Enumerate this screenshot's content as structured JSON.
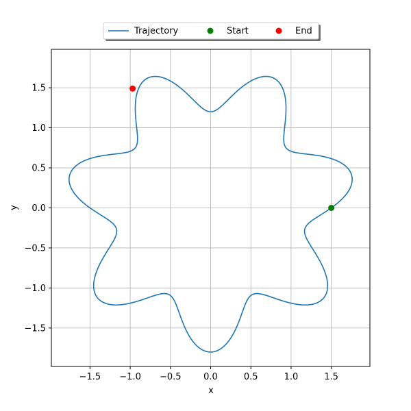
{
  "chart_data": {
    "type": "line",
    "xlabel": "x",
    "ylabel": "y",
    "xlim": [
      -1.98,
      1.98
    ],
    "ylim": [
      -1.98,
      1.98
    ],
    "xticks": [
      -1.5,
      -1.0,
      -0.5,
      0.0,
      0.5,
      1.0,
      1.5
    ],
    "yticks": [
      -1.5,
      -1.0,
      -0.5,
      0.0,
      0.5,
      1.0,
      1.5
    ],
    "xtick_labels": [
      "−1.5",
      "−1.0",
      "−0.5",
      "0.0",
      "0.5",
      "1.0",
      "1.5"
    ],
    "ytick_labels": [
      "−1.5",
      "−1.0",
      "−0.5",
      "0.0",
      "0.5",
      "1.0",
      "1.5"
    ],
    "grid": true,
    "legend_placement": "top-center",
    "legend": [
      "Trajectory",
      "Start",
      "End"
    ],
    "trajectory": {
      "name": "Trajectory",
      "color": "#1f77b4",
      "base_radius": 1.5,
      "amplitude": 0.3,
      "lobes": 7,
      "turns": 1.9
    },
    "start": {
      "name": "Start",
      "x": 1.5,
      "y": 0.0,
      "color": "#008000"
    },
    "end": {
      "name": "End",
      "x": -0.97,
      "y": 1.49,
      "color": "#ff0000"
    }
  }
}
